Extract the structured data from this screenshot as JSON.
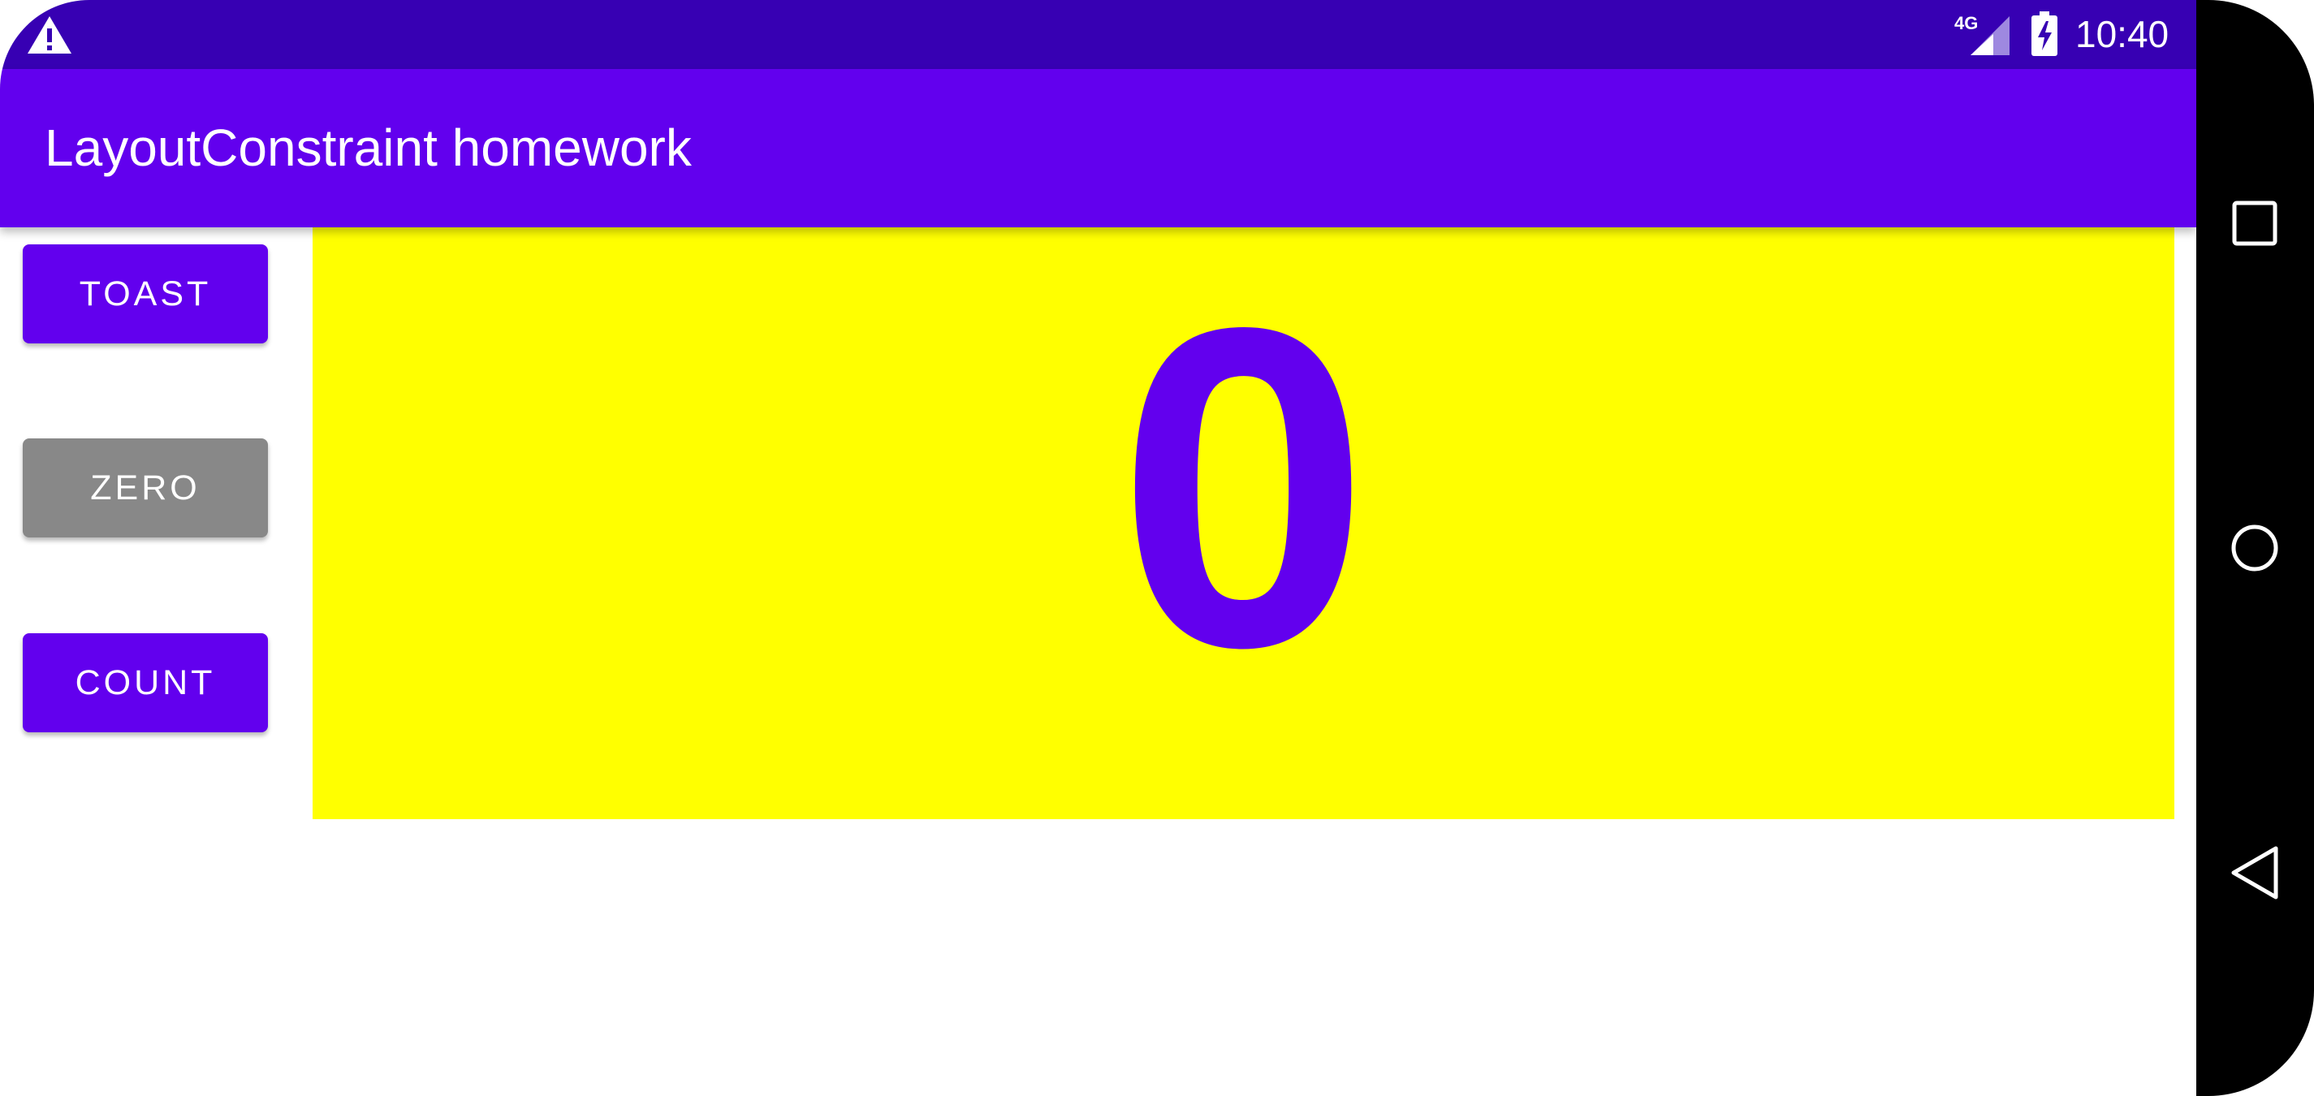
{
  "status_bar": {
    "time": "10:40",
    "network": "4G",
    "icons": [
      "warning-icon",
      "signal-icon",
      "battery-charging-icon"
    ]
  },
  "app_bar": {
    "title": "LayoutConstraint homework"
  },
  "buttons": {
    "toast_label": "TOAST",
    "zero_label": "ZERO",
    "count_label": "COUNT"
  },
  "counter": {
    "value": "0"
  },
  "nav_bar": {
    "icons": [
      "recents-icon",
      "home-icon",
      "back-icon"
    ]
  },
  "colors": {
    "status_bar": "#3700b3",
    "primary": "#6200ee",
    "zero_button": "#888888",
    "count_panel": "#ffff00",
    "count_text": "#6200ee"
  }
}
